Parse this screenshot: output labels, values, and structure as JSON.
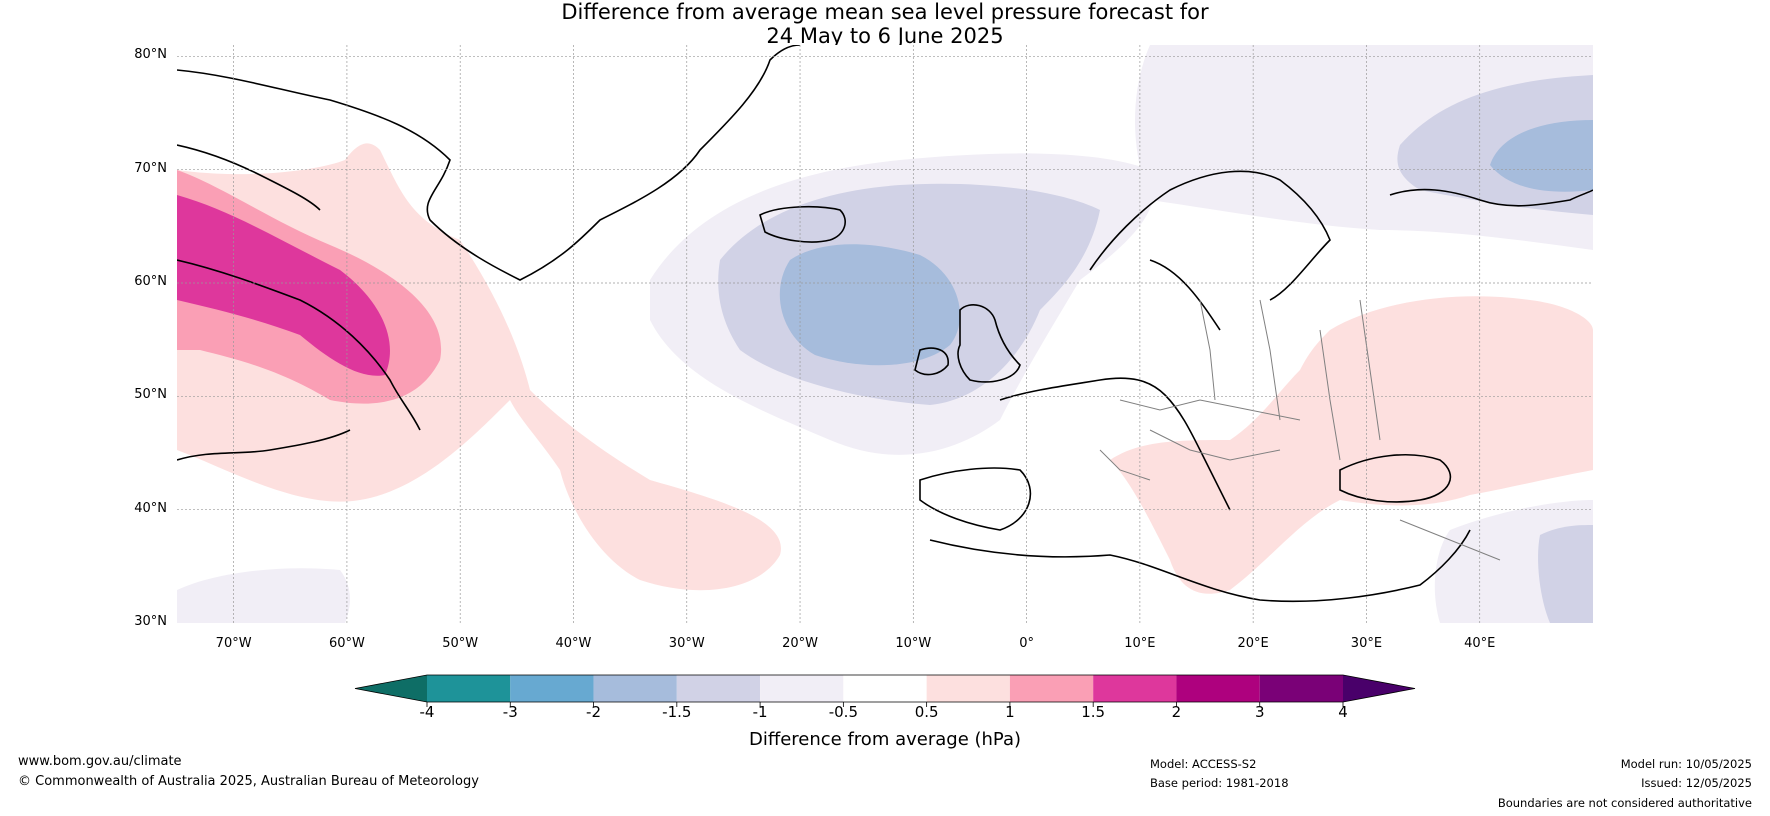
{
  "title": {
    "line1": "Difference from average mean sea level pressure forecast for",
    "line2": "24 May to 6 June 2025"
  },
  "map": {
    "lat_labels": [
      "80°N",
      "70°N",
      "60°N",
      "50°N",
      "40°N",
      "30°N"
    ],
    "lon_labels": [
      "70°W",
      "60°W",
      "50°W",
      "40°W",
      "30°W",
      "20°W",
      "10°W",
      "0°",
      "10°E",
      "20°E",
      "30°E",
      "40°E"
    ],
    "colors": {
      "land_outline": "#000000",
      "border": "#808080",
      "grid": "#999999"
    }
  },
  "colorbar": {
    "ticks": [
      "-4",
      "-3",
      "-2",
      "-1.5",
      "-1",
      "-0.5",
      "0.5",
      "1",
      "1.5",
      "2",
      "3",
      "4"
    ],
    "colors": [
      "#0e6e66",
      "#1e9399",
      "#67a9d1",
      "#a6bcdc",
      "#d1d2e6",
      "#f1eef6",
      "#ffffff",
      "#fde0df",
      "#fa9fb5",
      "#de379c",
      "#ae017e",
      "#7a0177",
      "#49006a"
    ],
    "label": "Difference from average (hPa)"
  },
  "footer": {
    "website": "www.bom.gov.au/climate",
    "copyright": "© Commonwealth of Australia 2025, Australian Bureau of Meteorology",
    "model": "Model: ACCESS-S2",
    "base_period": "Base period: 1981-2018",
    "model_run": "Model run: 10/05/2025",
    "issued": "Issued: 12/05/2025",
    "disclaimer": "Boundaries are not considered authoritative"
  }
}
